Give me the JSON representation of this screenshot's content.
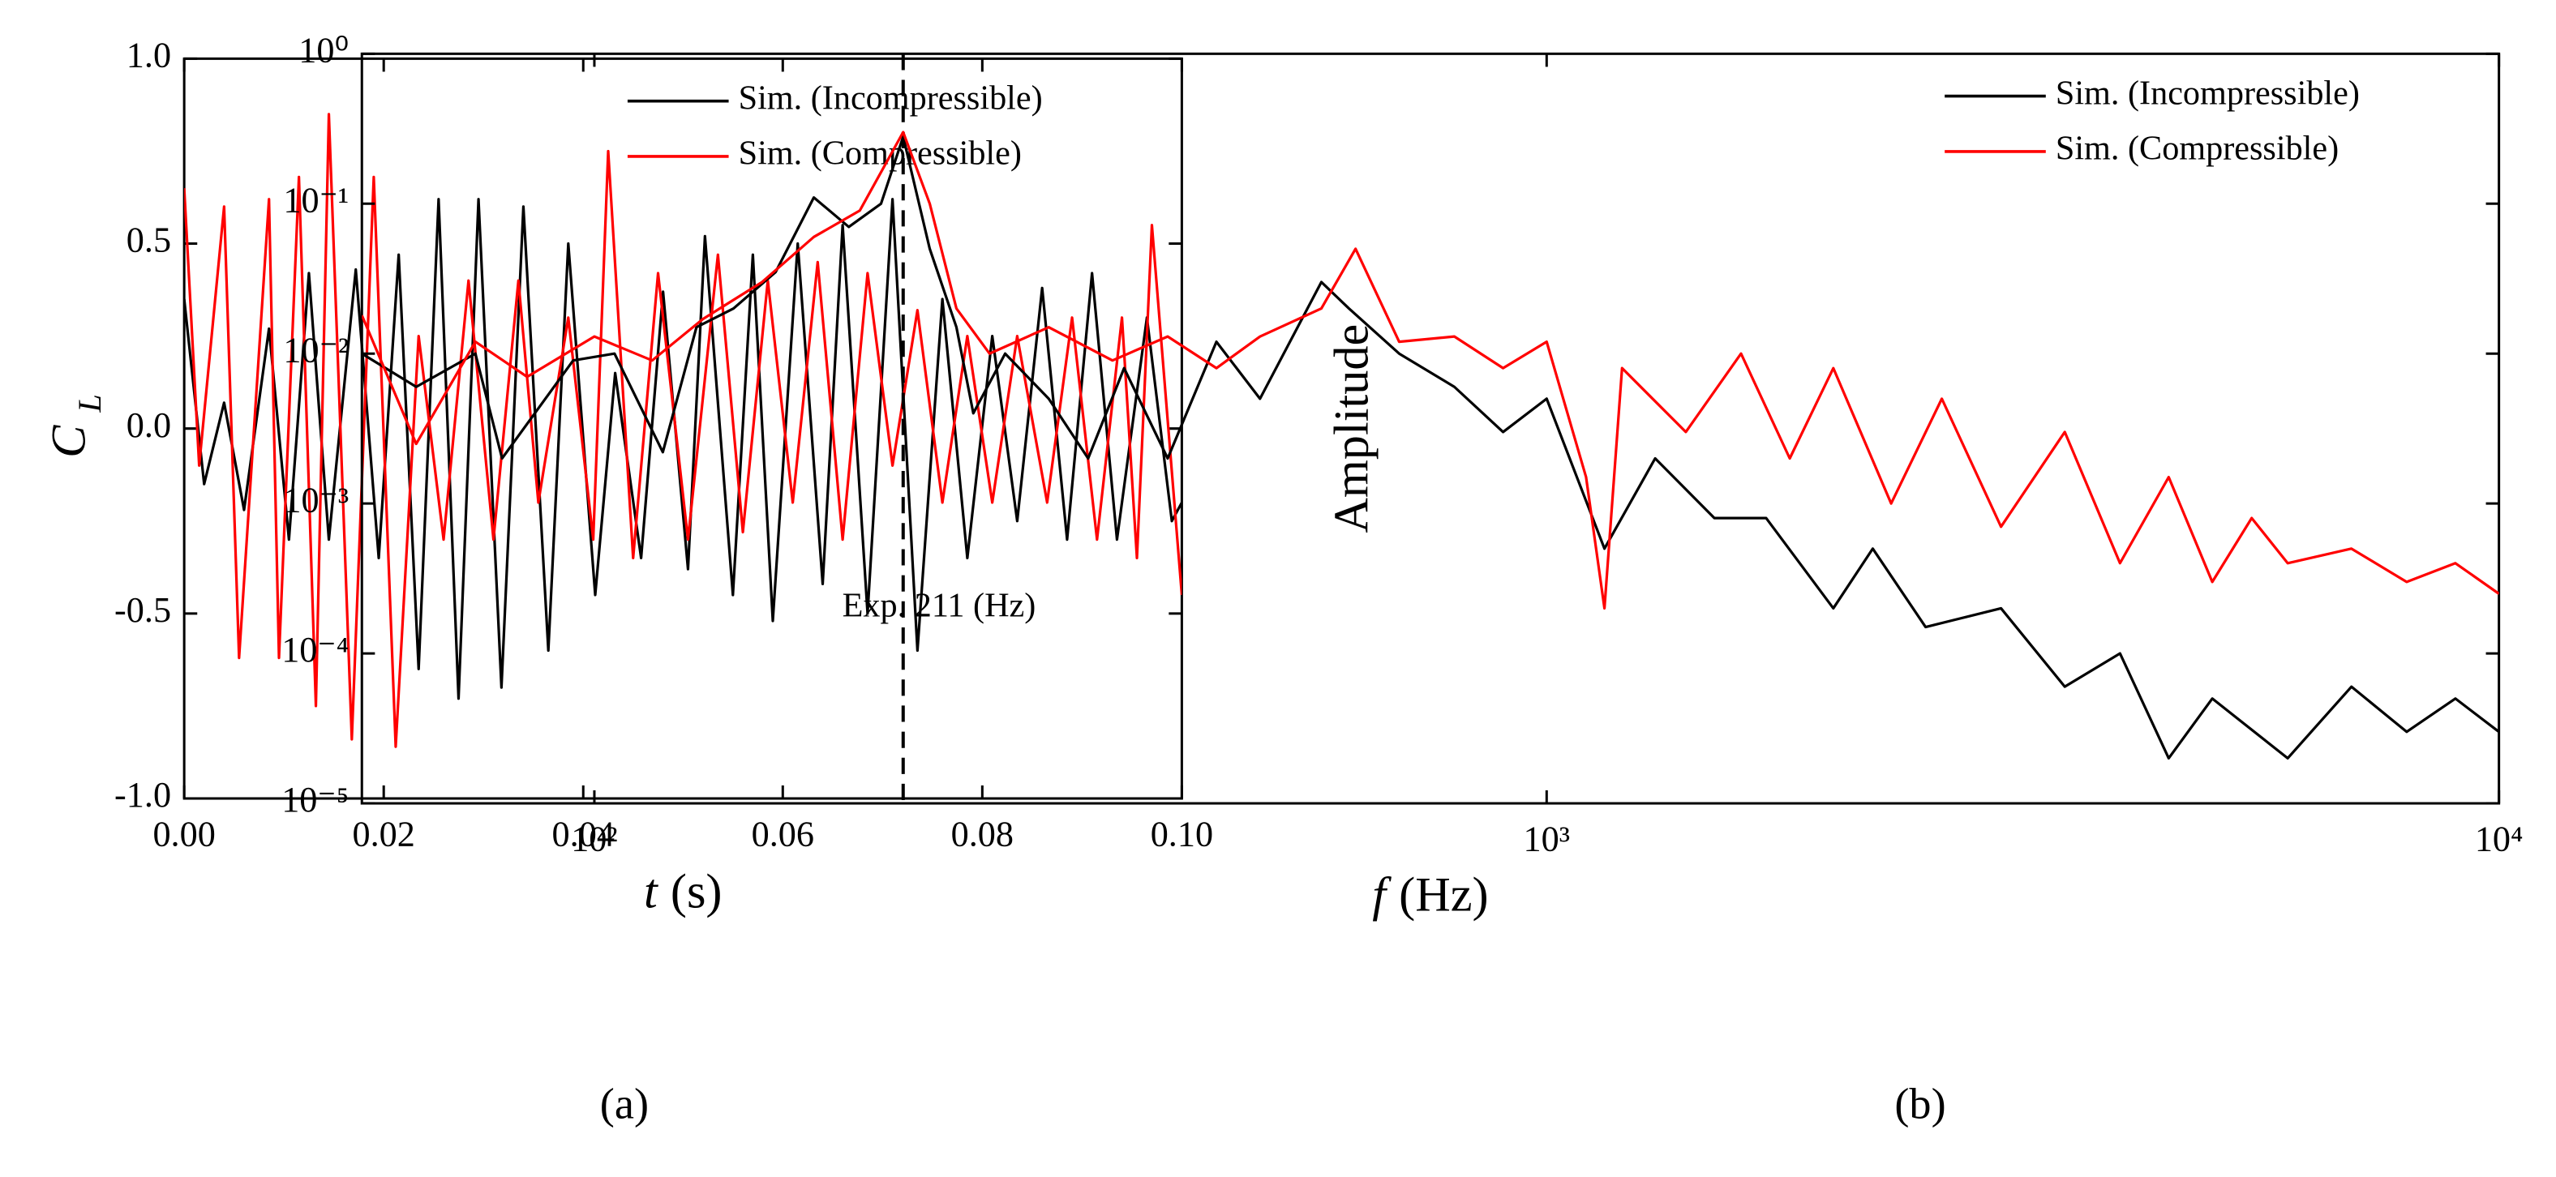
{
  "chart_data": [
    {
      "type": "line",
      "caption": "(a)",
      "xlabel_var": "t",
      "xlabel_unit": "(s)",
      "ylabel": "C",
      "ylabel_sub": "L",
      "xlim": [
        0,
        0.1
      ],
      "ylim": [
        -1,
        1
      ],
      "xticks": [
        {
          "value": 0,
          "label": "0.00"
        },
        {
          "value": 0.02,
          "label": "0.02"
        },
        {
          "value": 0.04,
          "label": "0.04"
        },
        {
          "value": 0.06,
          "label": "0.06"
        },
        {
          "value": 0.08,
          "label": "0.08"
        },
        {
          "value": 0.1,
          "label": "0.10"
        }
      ],
      "yticks": [
        {
          "value": -1,
          "label": "-1.0"
        },
        {
          "value": -0.5,
          "label": "-0.5"
        },
        {
          "value": 0,
          "label": "0.0"
        },
        {
          "value": 0.5,
          "label": "0.5"
        },
        {
          "value": 1,
          "label": "1.0"
        }
      ],
      "legend": "upper right",
      "series": [
        {
          "name": "Sim. (Incompressible)",
          "color": "#000000",
          "x": [
            0,
            0.002,
            0.004,
            0.006,
            0.0085,
            0.0105,
            0.0125,
            0.0145,
            0.0172,
            0.0195,
            0.0215,
            0.0235,
            0.0255,
            0.0275,
            0.0295,
            0.0318,
            0.034,
            0.0365,
            0.0385,
            0.0412,
            0.0432,
            0.0458,
            0.048,
            0.0505,
            0.0522,
            0.055,
            0.057,
            0.059,
            0.0615,
            0.064,
            0.066,
            0.0685,
            0.071,
            0.0735,
            0.076,
            0.0785,
            0.081,
            0.0835,
            0.086,
            0.0885,
            0.091,
            0.0935,
            0.0965,
            0.099,
            0.1
          ],
          "values": [
            0.35,
            -0.15,
            0.07,
            -0.22,
            0.27,
            -0.3,
            0.42,
            -0.3,
            0.43,
            -0.35,
            0.47,
            -0.65,
            0.62,
            -0.73,
            0.62,
            -0.7,
            0.6,
            -0.6,
            0.5,
            -0.45,
            0.15,
            -0.35,
            0.37,
            -0.38,
            0.52,
            -0.45,
            0.47,
            -0.52,
            0.5,
            -0.42,
            0.55,
            -0.5,
            0.62,
            -0.6,
            0.35,
            -0.35,
            0.25,
            -0.25,
            0.38,
            -0.3,
            0.42,
            -0.3,
            0.3,
            -0.25,
            -0.2
          ]
        },
        {
          "name": "Sim. (Compressible)",
          "color": "#ff0000",
          "x": [
            0,
            0.0015,
            0.004,
            0.0055,
            0.0085,
            0.0095,
            0.0115,
            0.0132,
            0.0145,
            0.0168,
            0.019,
            0.0212,
            0.0235,
            0.026,
            0.0285,
            0.031,
            0.0335,
            0.0355,
            0.0385,
            0.041,
            0.0425,
            0.045,
            0.0475,
            0.0505,
            0.0535,
            0.056,
            0.0585,
            0.061,
            0.0635,
            0.066,
            0.0685,
            0.071,
            0.0735,
            0.076,
            0.0785,
            0.081,
            0.0835,
            0.0865,
            0.089,
            0.0915,
            0.094,
            0.0955,
            0.097,
            0.1
          ],
          "values": [
            0.65,
            -0.1,
            0.6,
            -0.62,
            0.62,
            -0.62,
            0.68,
            -0.75,
            0.85,
            -0.84,
            0.68,
            -0.86,
            0.25,
            -0.3,
            0.4,
            -0.3,
            0.4,
            -0.2,
            0.3,
            -0.3,
            0.75,
            -0.35,
            0.42,
            -0.3,
            0.47,
            -0.28,
            0.4,
            -0.2,
            0.45,
            -0.3,
            0.42,
            -0.1,
            0.32,
            -0.2,
            0.25,
            -0.2,
            0.25,
            -0.2,
            0.3,
            -0.3,
            0.3,
            -0.35,
            0.55,
            -0.45
          ]
        }
      ]
    },
    {
      "type": "line",
      "caption": "(b)",
      "xlabel_var": "f",
      "xlabel_unit": "(Hz)",
      "ylabel": "Amplitude",
      "xscale": "log",
      "yscale": "log",
      "xlim": [
        57,
        10000
      ],
      "ylim": [
        1e-05,
        1
      ],
      "xticks": [
        {
          "value": 100,
          "label": "10²"
        },
        {
          "value": 1000,
          "label": "10³"
        },
        {
          "value": 10000,
          "label": "10⁴"
        }
      ],
      "yticks": [
        {
          "value": 1e-05,
          "label": "10⁻⁵"
        },
        {
          "value": 0.0001,
          "label": "10⁻⁴"
        },
        {
          "value": 0.001,
          "label": "10⁻³"
        },
        {
          "value": 0.01,
          "label": "10⁻²"
        },
        {
          "value": 0.1,
          "label": "10⁻¹"
        },
        {
          "value": 1,
          "label": "10⁰"
        }
      ],
      "annotation": {
        "text": "Exp. 211 (Hz)",
        "x": 211
      },
      "legend": "upper right",
      "series": [
        {
          "name": "Sim. (Incompressible)",
          "color": "#000000",
          "x": [
            57,
            65,
            75,
            80,
            95,
            105,
            118,
            128,
            140,
            155,
            170,
            185,
            200,
            211,
            225,
            240,
            250,
            270,
            300,
            330,
            360,
            400,
            450,
            500,
            580,
            620,
            700,
            800,
            900,
            1000,
            1150,
            1300,
            1500,
            1700,
            2000,
            2200,
            2500,
            3000,
            3500,
            4000,
            4500,
            5000,
            6000,
            7000,
            8000,
            9000,
            10000
          ],
          "values": [
            0.01,
            0.006,
            0.01,
            0.002,
            0.009,
            0.01,
            0.0022,
            0.015,
            0.02,
            0.035,
            0.11,
            0.07,
            0.1,
            0.28,
            0.05,
            0.015,
            0.004,
            0.01,
            0.005,
            0.002,
            0.008,
            0.002,
            0.012,
            0.005,
            0.03,
            0.02,
            0.01,
            0.006,
            0.003,
            0.005,
            0.0005,
            0.002,
            0.0008,
            0.0008,
            0.0002,
            0.0005,
            0.00015,
            0.0002,
            6e-05,
            0.0001,
            2e-05,
            5e-05,
            2e-05,
            6e-05,
            3e-05,
            5e-05,
            3e-05
          ]
        },
        {
          "name": "Sim. (Compressible)",
          "color": "#ff0000",
          "x": [
            57,
            65,
            75,
            85,
            100,
            115,
            130,
            150,
            170,
            190,
            211,
            225,
            240,
            260,
            300,
            350,
            400,
            450,
            500,
            580,
            630,
            700,
            800,
            900,
            1000,
            1100,
            1150,
            1200,
            1400,
            1600,
            1800,
            2000,
            2300,
            2600,
            3000,
            3500,
            4000,
            4500,
            5000,
            5500,
            6000,
            7000,
            8000,
            9000,
            10000
          ],
          "values": [
            0.018,
            0.0025,
            0.012,
            0.007,
            0.013,
            0.009,
            0.017,
            0.03,
            0.06,
            0.09,
            0.3,
            0.1,
            0.02,
            0.01,
            0.015,
            0.009,
            0.013,
            0.008,
            0.013,
            0.02,
            0.05,
            0.012,
            0.013,
            0.008,
            0.012,
            0.0015,
            0.0002,
            0.008,
            0.003,
            0.01,
            0.002,
            0.008,
            0.001,
            0.005,
            0.0007,
            0.003,
            0.0004,
            0.0015,
            0.0003,
            0.0008,
            0.0004,
            0.0005,
            0.0003,
            0.0004,
            0.00025
          ]
        }
      ]
    }
  ]
}
